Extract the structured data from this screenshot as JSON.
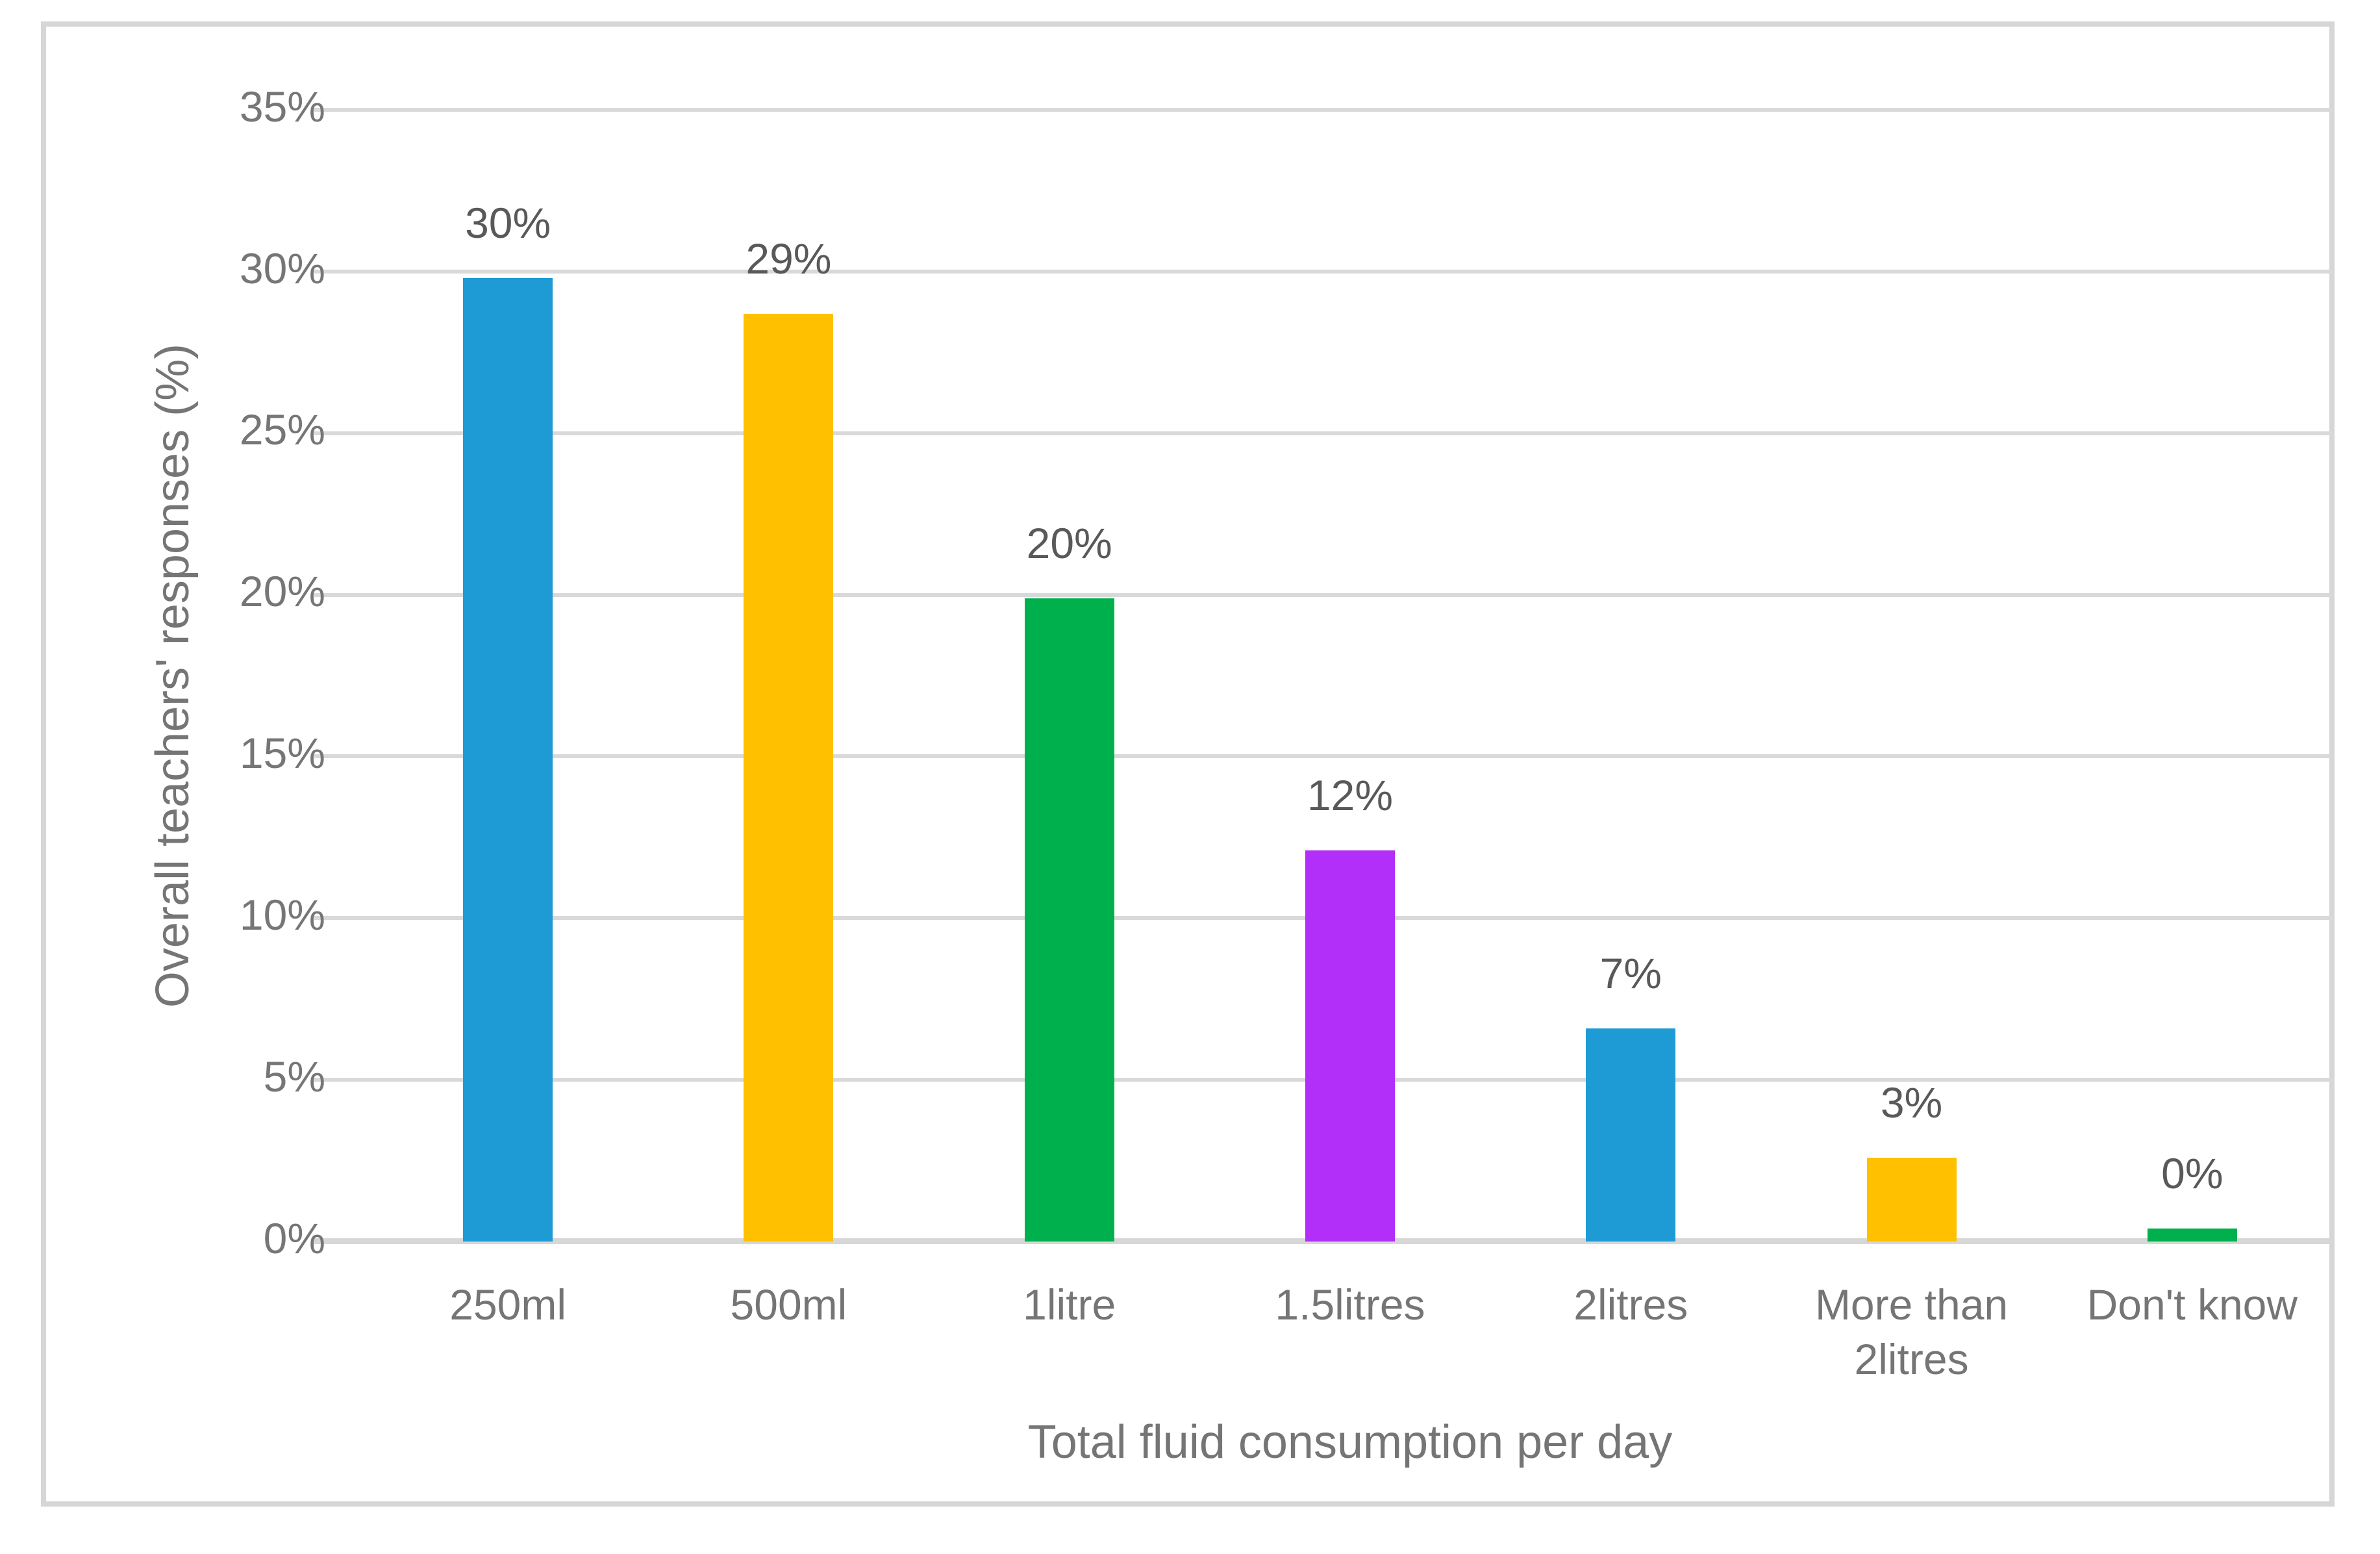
{
  "chart_data": {
    "type": "bar",
    "title": "",
    "xlabel": "Total fluid consumption per day",
    "ylabel": "Overall teachers' responses (%)",
    "categories": [
      "250ml",
      "500ml",
      "1litre",
      "1.5litres",
      "2litres",
      "More than 2litres",
      "Don't know"
    ],
    "values": [
      30,
      29,
      20,
      12,
      7,
      3,
      0
    ],
    "value_labels": [
      "30%",
      "29%",
      "20%",
      "12%",
      "7%",
      "3%",
      "0%"
    ],
    "plotted_bar_heights_pct": [
      29.8,
      28.7,
      19.9,
      12.1,
      6.6,
      2.6,
      0.4
    ],
    "bar_colors": [
      "#1E9BD5",
      "#FFC000",
      "#00B04C",
      "#B12FF9",
      "#1E9BD5",
      "#FFC000",
      "#00B04C"
    ],
    "y_ticks": [
      "0%",
      "5%",
      "10%",
      "15%",
      "20%",
      "25%",
      "30%",
      "35%"
    ],
    "y_tick_values": [
      0,
      5,
      10,
      15,
      20,
      25,
      30,
      35
    ],
    "ylim": [
      0,
      35
    ],
    "grid": "horizontal",
    "legend": "none",
    "colors": {
      "gridline": "#D9D9D9",
      "axis_baseline": "#D7D7D7",
      "frame_border": "#D6D6D6",
      "tick_text": "#767676",
      "value_label_text": "#595959",
      "axis_title_text": "#757575",
      "background": "#FFFFFF"
    }
  }
}
